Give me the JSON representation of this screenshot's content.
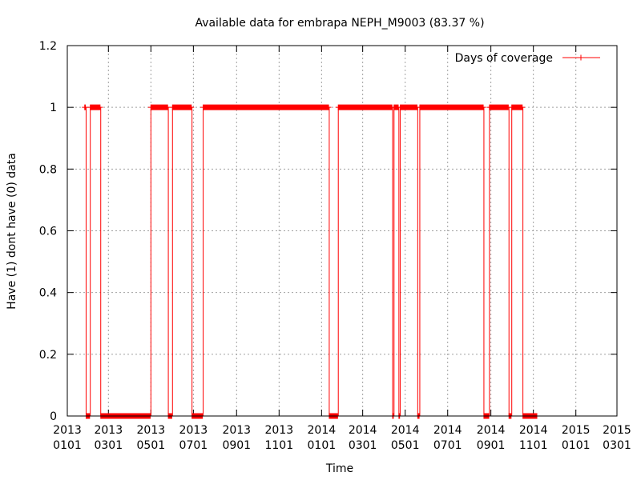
{
  "chart_data": {
    "type": "line",
    "title": "Available data for embrapa NEPH_M9003 (83.37 %)",
    "xlabel": "Time",
    "ylabel": "Have (1) dont have (0) data",
    "xlim": [
      "2013-01-01",
      "2015-03-01"
    ],
    "ylim": [
      0,
      1.2
    ],
    "grid": true,
    "legend_position": "top-right",
    "x_ticks": [
      {
        "date": "2013-01-01",
        "top": "2013",
        "bottom": "0101"
      },
      {
        "date": "2013-03-01",
        "top": "2013",
        "bottom": "0301"
      },
      {
        "date": "2013-05-01",
        "top": "2013",
        "bottom": "0501"
      },
      {
        "date": "2013-07-01",
        "top": "2013",
        "bottom": "0701"
      },
      {
        "date": "2013-09-01",
        "top": "2013",
        "bottom": "0901"
      },
      {
        "date": "2013-11-01",
        "top": "2013",
        "bottom": "1101"
      },
      {
        "date": "2014-01-01",
        "top": "2014",
        "bottom": "0101"
      },
      {
        "date": "2014-03-01",
        "top": "2014",
        "bottom": "0301"
      },
      {
        "date": "2014-05-01",
        "top": "2014",
        "bottom": "0501"
      },
      {
        "date": "2014-07-01",
        "top": "2014",
        "bottom": "0701"
      },
      {
        "date": "2014-09-01",
        "top": "2014",
        "bottom": "0901"
      },
      {
        "date": "2014-11-01",
        "top": "2014",
        "bottom": "1101"
      },
      {
        "date": "2015-01-01",
        "top": "2015",
        "bottom": "0101"
      },
      {
        "date": "2015-03-01",
        "top": "2015",
        "bottom": "0301"
      }
    ],
    "y_ticks": [
      "0",
      "0.2",
      "0.4",
      "0.6",
      "0.8",
      "1",
      "1.2"
    ],
    "series": [
      {
        "name": "Days of coverage",
        "color": "#ff0000",
        "marker": "plus",
        "segments": [
          {
            "start": "2013-01-26",
            "end": "2013-01-27",
            "value": 1
          },
          {
            "start": "2013-01-28",
            "end": "2013-02-02",
            "value": 0
          },
          {
            "start": "2013-02-03",
            "end": "2013-02-17",
            "value": 1
          },
          {
            "start": "2013-02-18",
            "end": "2013-04-30",
            "value": 0
          },
          {
            "start": "2013-05-01",
            "end": "2013-05-25",
            "value": 1
          },
          {
            "start": "2013-05-26",
            "end": "2013-05-31",
            "value": 0
          },
          {
            "start": "2013-06-01",
            "end": "2013-06-28",
            "value": 1
          },
          {
            "start": "2013-06-29",
            "end": "2013-07-14",
            "value": 0
          },
          {
            "start": "2013-07-15",
            "end": "2014-01-11",
            "value": 1
          },
          {
            "start": "2014-01-12",
            "end": "2014-01-24",
            "value": 0
          },
          {
            "start": "2014-01-25",
            "end": "2014-04-12",
            "value": 1
          },
          {
            "start": "2014-04-13",
            "end": "2014-04-14",
            "value": 0
          },
          {
            "start": "2014-04-15",
            "end": "2014-04-21",
            "value": 1
          },
          {
            "start": "2014-04-22",
            "end": "2014-04-23",
            "value": 0
          },
          {
            "start": "2014-04-24",
            "end": "2014-05-18",
            "value": 1
          },
          {
            "start": "2014-05-19",
            "end": "2014-05-21",
            "value": 0
          },
          {
            "start": "2014-05-22",
            "end": "2014-08-21",
            "value": 1
          },
          {
            "start": "2014-08-22",
            "end": "2014-08-29",
            "value": 0
          },
          {
            "start": "2014-08-30",
            "end": "2014-09-26",
            "value": 1
          },
          {
            "start": "2014-09-27",
            "end": "2014-09-30",
            "value": 0
          },
          {
            "start": "2014-10-01",
            "end": "2014-10-16",
            "value": 1
          },
          {
            "start": "2014-10-17",
            "end": "2014-11-06",
            "value": 0
          }
        ]
      }
    ]
  }
}
